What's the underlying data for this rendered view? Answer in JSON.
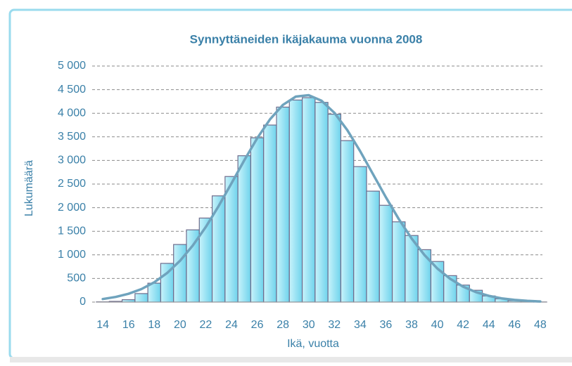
{
  "chart_data": {
    "type": "histogram",
    "title": "Synnyttäneiden ikäjakauma vuonna 2008",
    "xlabel": "Ikä, vuotta",
    "ylabel": "Lukumäärä",
    "bins": [
      13.5,
      14.5,
      15.5,
      16.5,
      17.5,
      18.5,
      19.5,
      20.5,
      21.5,
      22.5,
      23.5,
      24.5,
      25.5,
      26.5,
      27.5,
      28.5,
      29.5,
      30.5,
      31.5,
      32.5,
      33.5,
      34.5,
      35.5,
      36.5,
      37.5,
      38.5,
      39.5,
      40.5,
      41.5,
      42.5,
      43.5,
      44.5,
      45.5,
      46.5,
      47.5,
      48.5
    ],
    "values": [
      5,
      15,
      50,
      180,
      400,
      820,
      1220,
      1530,
      1780,
      2250,
      2660,
      3100,
      3480,
      3750,
      4130,
      4280,
      4330,
      4230,
      3980,
      3420,
      2870,
      2350,
      2050,
      1700,
      1410,
      1110,
      860,
      560,
      360,
      250,
      130,
      70,
      30,
      10,
      3
    ],
    "color": "#8fe0f2",
    "edge_color": "#6e6c8c",
    "line": {
      "color": "#6fa3bd",
      "x": [
        14,
        15,
        16,
        17,
        18,
        19,
        20,
        21,
        22,
        23,
        24,
        25,
        26,
        27,
        28,
        29,
        30,
        31,
        32,
        33,
        34,
        35,
        36,
        37,
        38,
        39,
        40,
        41,
        42,
        43,
        44,
        45,
        46,
        47,
        48
      ],
      "values": [
        64,
        108,
        176,
        276,
        420,
        616,
        875,
        1199,
        1588,
        2033,
        2515,
        3006,
        3471,
        3874,
        4177,
        4353,
        4383,
        4265,
        4009,
        3643,
        3197,
        2712,
        2222,
        1760,
        1348,
        997,
        712,
        492,
        328,
        211,
        132,
        79,
        46,
        26,
        14
      ]
    },
    "xlim": [
      13.5,
      48.5
    ],
    "xticks": [
      14,
      16,
      18,
      20,
      22,
      24,
      26,
      28,
      30,
      32,
      34,
      36,
      38,
      40,
      42,
      44,
      46,
      48
    ],
    "ylim": [
      0,
      5000
    ],
    "yticks": [
      0,
      500,
      {
        "value": 1000,
        "label": "1 000"
      },
      {
        "value": 1500,
        "label": "1 500"
      },
      {
        "value": 2000,
        "label": "2 000"
      },
      {
        "value": 2500,
        "label": "2 500"
      },
      {
        "value": 3000,
        "label": "3 000"
      },
      {
        "value": 3500,
        "label": "3 500"
      },
      {
        "value": 4000,
        "label": "4 000"
      },
      {
        "value": 4500,
        "label": "4 500"
      },
      {
        "value": 5000,
        "label": "5 000"
      }
    ],
    "grid": true
  }
}
